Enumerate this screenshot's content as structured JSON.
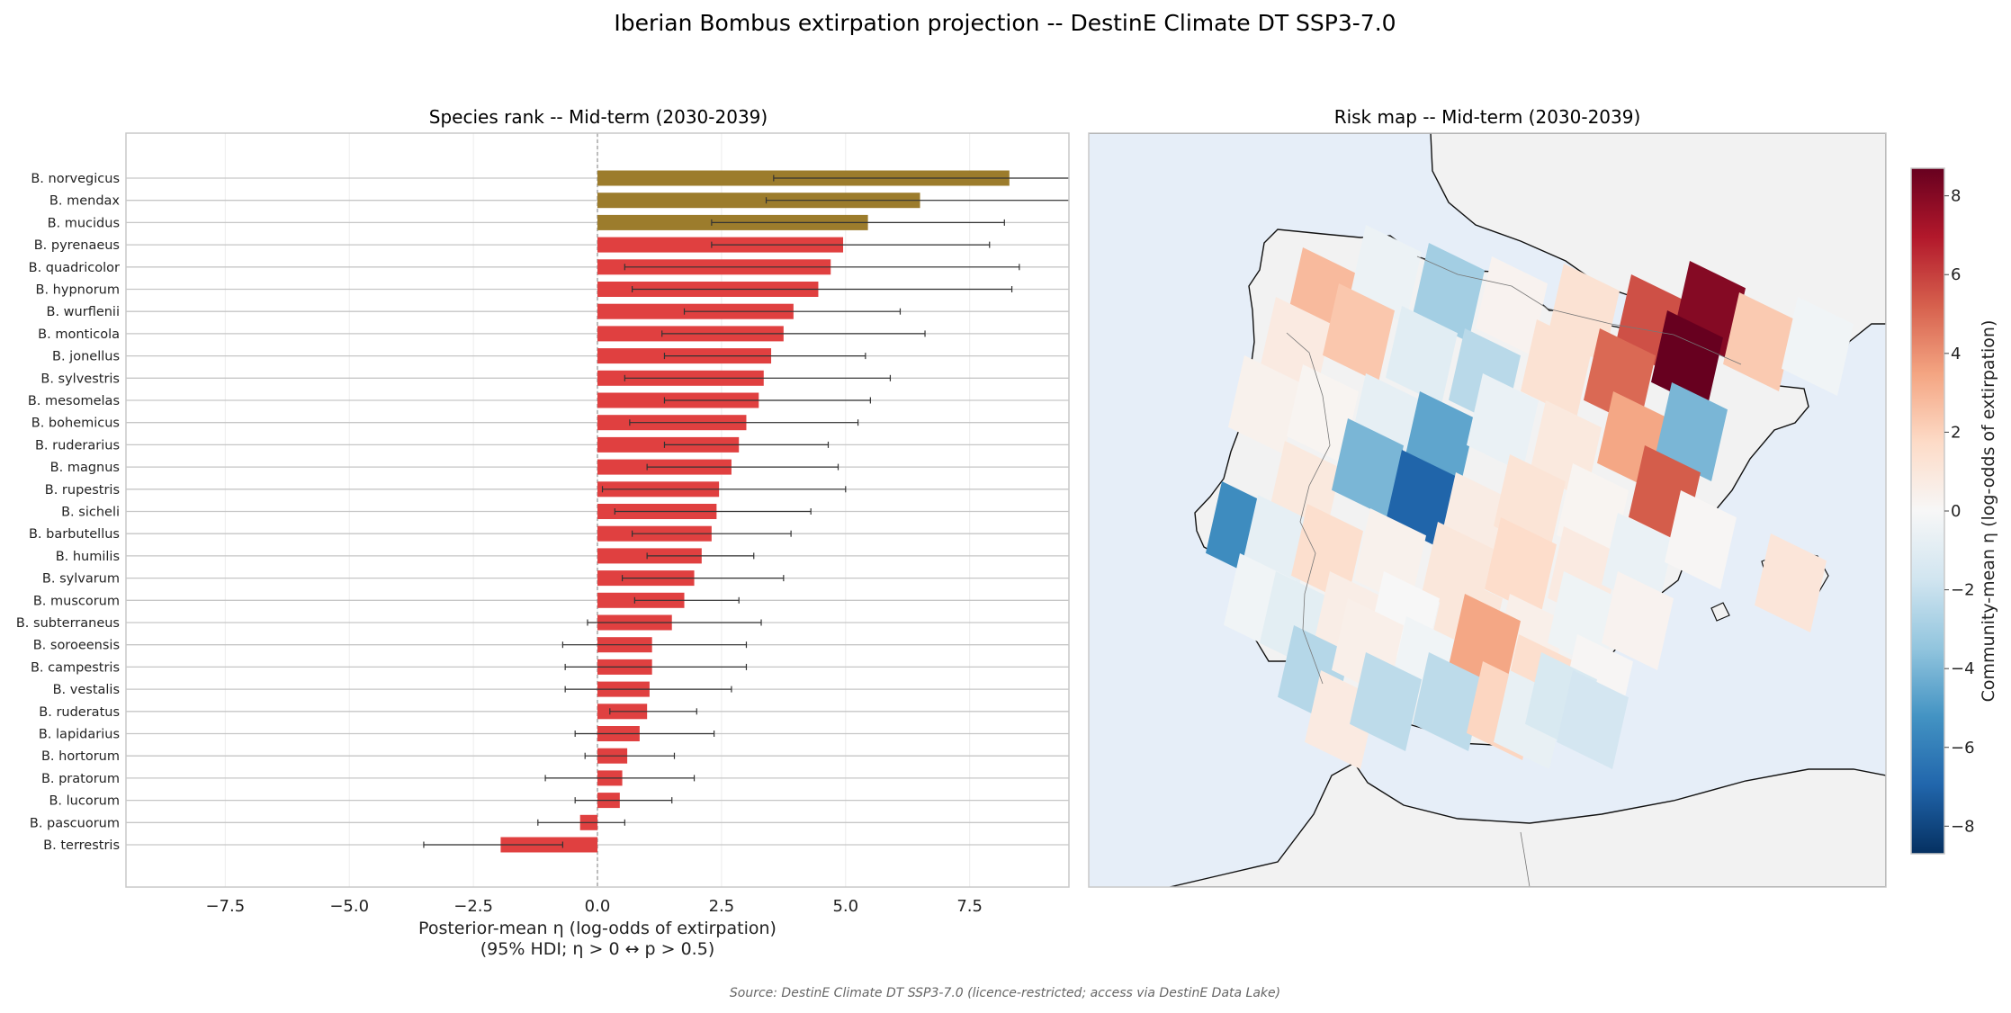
{
  "figure": {
    "title": "Iberian Bombus extirpation projection -- DestinE Climate DT SSP3-7.0",
    "source_note": "Source: DestinE Climate DT SSP3-7.0 (licence-restricted; access via DestinE Data Lake)"
  },
  "colors": {
    "bar_gold": "#9c7c2c",
    "bar_red": "#e04040",
    "map_sea": "#e6eef8",
    "map_land_outside": "#f2f2f2"
  },
  "chart_data": [
    {
      "type": "bar",
      "orientation": "horizontal",
      "title": "Species rank -- Mid-term (2030-2039)",
      "xlabel": "Posterior-mean η (log-odds of extirpation)",
      "xlabel_sub": "(95% HDI; η > 0 ↔ p > 0.5)",
      "xlim": [
        -9.5,
        9.5
      ],
      "xticks": [
        -7.5,
        -5.0,
        -2.5,
        0.0,
        2.5,
        5.0,
        7.5
      ],
      "xtick_labels": [
        "−7.5",
        "−5.0",
        "−2.5",
        "0.0",
        "2.5",
        "5.0",
        "7.5"
      ],
      "reference_line": 0,
      "grid": true,
      "error_bars": "95% HDI",
      "series": [
        {
          "categories": [
            "B. norvegicus",
            "B. mendax",
            "B. mucidus",
            "B. pyrenaeus",
            "B. quadricolor",
            "B. hypnorum",
            "B. wurflenii",
            "B. monticola",
            "B. jonellus",
            "B. sylvestris",
            "B. mesomelas",
            "B. bohemicus",
            "B. ruderarius",
            "B. magnus",
            "B. rupestris",
            "B. sicheli",
            "B. barbutellus",
            "B. humilis",
            "B. sylvarum",
            "B. muscorum",
            "B. subterraneus",
            "B. soroeensis",
            "B. campestris",
            "B. vestalis",
            "B. ruderatus",
            "B. lapidarius",
            "B. hortorum",
            "B. pratorum",
            "B. lucorum",
            "B. pascuorum",
            "B. terrestris"
          ],
          "values": [
            8.3,
            6.5,
            5.45,
            4.95,
            4.7,
            4.45,
            3.95,
            3.75,
            3.5,
            3.35,
            3.25,
            3.0,
            2.85,
            2.7,
            2.45,
            2.4,
            2.3,
            2.1,
            1.95,
            1.75,
            1.5,
            1.1,
            1.1,
            1.05,
            1.0,
            0.85,
            0.6,
            0.5,
            0.45,
            -0.35,
            -1.95
          ],
          "ci_low": [
            3.55,
            3.4,
            2.3,
            2.3,
            0.55,
            0.7,
            1.75,
            1.3,
            1.35,
            0.55,
            1.35,
            0.65,
            1.35,
            1.0,
            0.1,
            0.35,
            0.7,
            1.0,
            0.5,
            0.75,
            -0.2,
            -0.7,
            -0.65,
            -0.65,
            0.25,
            -0.45,
            -0.25,
            -1.05,
            -0.45,
            -1.2,
            -3.5
          ],
          "ci_high": [
            9.5,
            9.5,
            8.2,
            7.9,
            8.5,
            8.35,
            6.1,
            6.6,
            5.4,
            5.9,
            5.5,
            5.25,
            4.65,
            4.85,
            5.0,
            4.3,
            3.9,
            3.15,
            3.75,
            2.85,
            3.3,
            3.0,
            3.0,
            2.7,
            2.0,
            2.35,
            1.55,
            1.95,
            1.5,
            0.55,
            -0.7
          ],
          "group": [
            "gold",
            "gold",
            "gold",
            "red",
            "red",
            "red",
            "red",
            "red",
            "red",
            "red",
            "red",
            "red",
            "red",
            "red",
            "red",
            "red",
            "red",
            "red",
            "red",
            "red",
            "red",
            "red",
            "red",
            "red",
            "red",
            "red",
            "red",
            "red",
            "red",
            "red",
            "red"
          ]
        }
      ]
    },
    {
      "type": "heatmap",
      "title": "Risk map -- Mid-term (2030-2039)",
      "colorbar_label": "Community-mean η (log-odds of extirpation)",
      "colormap": "RdBu_r",
      "vlim": [
        -8.7,
        8.7
      ],
      "cbar_ticks": [
        -8,
        -6,
        -4,
        -2,
        0,
        2,
        4,
        6,
        8
      ],
      "cbar_tick_labels": [
        "−8",
        "−6",
        "−4",
        "−2",
        "0",
        "2",
        "4",
        "6",
        "8"
      ],
      "cells": [
        {
          "value": 2.8
        },
        {
          "value": -0.5
        },
        {
          "value": -3.0
        },
        {
          "value": 0.3
        },
        {
          "value": 1.3
        },
        {
          "value": 5.6
        },
        {
          "value": 8.0
        },
        {
          "value": 2.3
        },
        {
          "value": -0.3
        },
        {
          "value": 0.8
        },
        {
          "value": 2.4
        },
        {
          "value": -1.0
        },
        {
          "value": -2.4
        },
        {
          "value": 1.3
        },
        {
          "value": 5.0
        },
        {
          "value": 8.7
        },
        {
          "value": 0.4
        },
        {
          "value": 0.2
        },
        {
          "value": -0.8
        },
        {
          "value": -4.6
        },
        {
          "value": -0.6
        },
        {
          "value": 0.9
        },
        {
          "value": 3.4
        },
        {
          "value": -4.0
        },
        {
          "value": 0.9
        },
        {
          "value": -4.0
        },
        {
          "value": -7.0
        },
        {
          "value": 0.7
        },
        {
          "value": 1.2
        },
        {
          "value": 0.2
        },
        {
          "value": 5.3
        },
        {
          "value": -5.5
        },
        {
          "value": -0.8
        },
        {
          "value": 1.5
        },
        {
          "value": 0.4
        },
        {
          "value": 1.0
        },
        {
          "value": 1.6
        },
        {
          "value": 0.8
        },
        {
          "value": -0.6
        },
        {
          "value": 0.1
        },
        {
          "value": -0.3
        },
        {
          "value": -0.9
        },
        {
          "value": 0.6
        },
        {
          "value": 0.0
        },
        {
          "value": 1.0
        },
        {
          "value": 0.5
        },
        {
          "value": -0.4
        },
        {
          "value": 0.3
        },
        {
          "value": 1.1
        },
        {
          "value": -2.5
        },
        {
          "value": 0.5
        },
        {
          "value": -0.3
        },
        {
          "value": 3.4
        },
        {
          "value": 1.5
        },
        {
          "value": 0.1
        },
        {
          "value": 0.8
        },
        {
          "value": -2.3
        },
        {
          "value": -2.3
        },
        {
          "value": 1.9
        },
        {
          "value": -0.7
        },
        {
          "value": -1.4
        },
        {
          "value": -1.6
        }
      ]
    }
  ]
}
